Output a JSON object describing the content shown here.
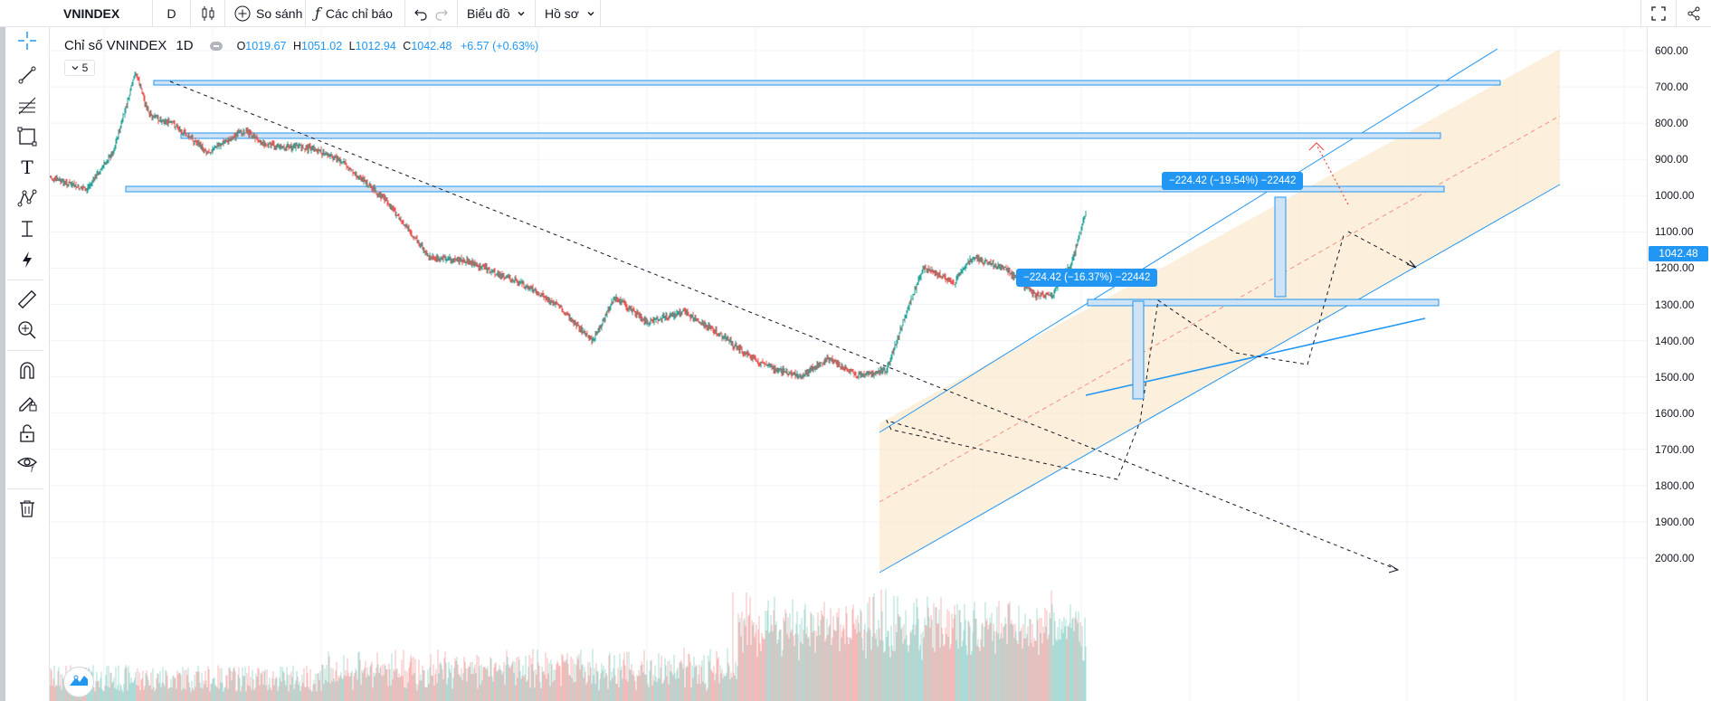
{
  "toolbar": {
    "symbol": "VNINDEX",
    "interval": "D",
    "compare_label": "So sánh",
    "indicators_label": "Các chỉ báo",
    "chart_label": "Biểu đồ",
    "profile_label": "Hồ sơ"
  },
  "legend": {
    "title": "Chỉ số VNINDEX",
    "interval": "1D",
    "open_key": "O",
    "open": "1019.67",
    "high_key": "H",
    "high": "1051.02",
    "low_key": "L",
    "low": "1012.94",
    "close_key": "C",
    "close": "1042.48",
    "change": "+6.57 (+0.63%)",
    "collapse_count": "5"
  },
  "price_axis": {
    "labels": [
      "600.00",
      "700.00",
      "800.00",
      "900.00",
      "1000.00",
      "1100.00",
      "1200.00",
      "1300.00",
      "1400.00",
      "1500.00",
      "1600.00",
      "1700.00",
      "1800.00",
      "1900.00",
      "2000.00"
    ],
    "last_price": "1042.48"
  },
  "measurements": [
    {
      "label": "−224.42 (−16.37%) −22442"
    },
    {
      "label": "−224.42 (−19.54%) −22442"
    }
  ],
  "colors": {
    "accent": "#2196f3",
    "up": "#26a69a",
    "down": "#ef5350",
    "channel_fill": "#fbe9cf"
  },
  "icons": {
    "left_toolbar": [
      "crosshair-icon",
      "trend-line-icon",
      "fib-icon",
      "rectangle-icon",
      "text-icon",
      "pattern-icon",
      "projection-icon",
      "lightning-icon",
      "ruler-icon",
      "zoom-in-icon",
      "magnet-icon",
      "lock-drawings-icon",
      "unlock-icon",
      "eye-icon",
      "trash-icon"
    ]
  },
  "chart_data": {
    "type": "candlestick",
    "symbol": "VNINDEX",
    "interval": "1D",
    "y_axis_inverted": true,
    "ylim": [
      580,
      2020
    ],
    "last": {
      "open": 1019.67,
      "high": 1051.02,
      "low": 1012.94,
      "close": 1042.48,
      "change": 6.57,
      "change_pct": 0.63
    },
    "price_path": [
      {
        "i": 0,
        "v": 950
      },
      {
        "i": 40,
        "v": 985
      },
      {
        "i": 70,
        "v": 880
      },
      {
        "i": 95,
        "v": 660
      },
      {
        "i": 110,
        "v": 780
      },
      {
        "i": 135,
        "v": 800
      },
      {
        "i": 175,
        "v": 880
      },
      {
        "i": 215,
        "v": 820
      },
      {
        "i": 240,
        "v": 860
      },
      {
        "i": 290,
        "v": 870
      },
      {
        "i": 320,
        "v": 900
      },
      {
        "i": 370,
        "v": 1010
      },
      {
        "i": 420,
        "v": 1170
      },
      {
        "i": 460,
        "v": 1180
      },
      {
        "i": 520,
        "v": 1240
      },
      {
        "i": 560,
        "v": 1300
      },
      {
        "i": 600,
        "v": 1400
      },
      {
        "i": 625,
        "v": 1280
      },
      {
        "i": 660,
        "v": 1350
      },
      {
        "i": 700,
        "v": 1320
      },
      {
        "i": 745,
        "v": 1390
      },
      {
        "i": 760,
        "v": 1420
      },
      {
        "i": 790,
        "v": 1470
      },
      {
        "i": 830,
        "v": 1500
      },
      {
        "i": 860,
        "v": 1450
      },
      {
        "i": 895,
        "v": 1500
      },
      {
        "i": 925,
        "v": 1480
      },
      {
        "i": 940,
        "v": 1370
      },
      {
        "i": 965,
        "v": 1200
      },
      {
        "i": 1000,
        "v": 1240
      },
      {
        "i": 1020,
        "v": 1170
      },
      {
        "i": 1055,
        "v": 1200
      },
      {
        "i": 1090,
        "v": 1275
      },
      {
        "i": 1110,
        "v": 1270
      },
      {
        "i": 1130,
        "v": 1180
      },
      {
        "i": 1145,
        "v": 1042
      }
    ],
    "volume": {
      "range_note": "unlabeled"
    }
  }
}
